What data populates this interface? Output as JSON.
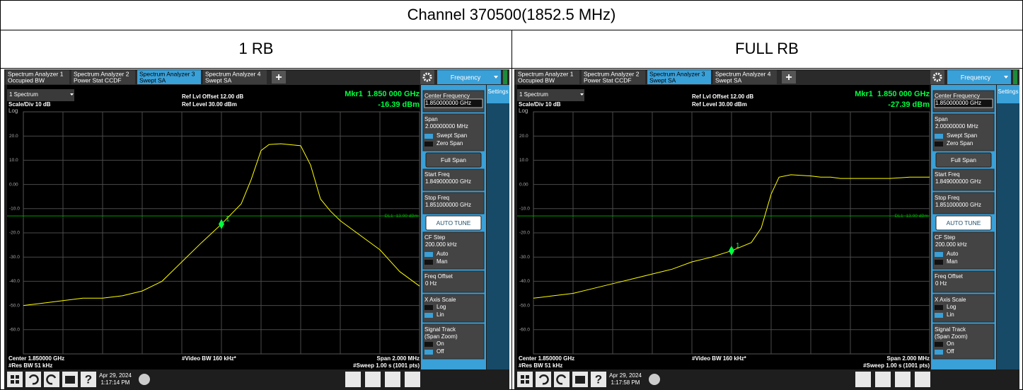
{
  "header": {
    "title": "Channel 370500(1852.5 MHz)"
  },
  "panels": [
    {
      "caption": "1 RB",
      "screen": {
        "tabs": [
          {
            "lines": [
              "Spectrum Analyzer 1",
              "Occupied BW"
            ]
          },
          {
            "lines": [
              "Spectrum Analyzer 2",
              "Power Stat CCDF"
            ]
          },
          {
            "lines": [
              "Spectrum Analyzer 3",
              "Swept SA"
            ]
          },
          {
            "lines": [
              "Spectrum Analyzer 4",
              "Swept SA"
            ]
          }
        ],
        "active_tab": 2,
        "add_tab": "+",
        "menu_title": "Frequency",
        "settings_tab": "Settings",
        "window": "1 Spectrum",
        "scale": "Scale/Div 10 dB",
        "scale_type": "Log",
        "ref_offset": "Ref Lvl Offset 12.00 dB",
        "ref_level": "Ref Level 30.00 dBm",
        "chart": {
          "type": "line",
          "color": "#ffff00",
          "xlim": [
            1849,
            1851
          ],
          "ylim": [
            -70,
            30
          ],
          "yticks": [
            {
              "value": 20,
              "label": "20.0"
            },
            {
              "value": 10,
              "label": "10.0"
            },
            {
              "value": 0,
              "label": "0.00"
            },
            {
              "value": -10,
              "label": "-10.0"
            },
            {
              "value": -20,
              "label": "-20.0"
            },
            {
              "value": -30,
              "label": "-30.0"
            },
            {
              "value": -40,
              "label": "-40.0"
            },
            {
              "value": -50,
              "label": "-50.0"
            },
            {
              "value": -60,
              "label": "-60.0"
            }
          ],
          "x": [
            1849.0,
            1849.1,
            1849.2,
            1849.3,
            1849.4,
            1849.5,
            1849.6,
            1849.7,
            1849.8,
            1849.9,
            1850.0,
            1850.1,
            1850.15,
            1850.2,
            1850.24,
            1850.3,
            1850.4,
            1850.45,
            1850.5,
            1850.55,
            1850.6,
            1850.7,
            1850.8,
            1850.9,
            1851.0
          ],
          "values": [
            -50,
            -49,
            -48,
            -47,
            -47,
            -46,
            -44,
            -40,
            -32,
            -24,
            -16.39,
            -8,
            2,
            14,
            16.5,
            16.8,
            16,
            8,
            -6,
            -11,
            -15,
            -21,
            -27,
            -36,
            -42
          ]
        },
        "marker": {
          "label": "1",
          "x": 1850,
          "value": -16.39,
          "freq_text": "Mkr1  1.850 000 GHz",
          "value_text": "-16.39 dBm",
          "color": "#00ff40"
        },
        "display_line": {
          "value": -13,
          "label": "DL1 -13.00 dBm",
          "color": "#00b000"
        },
        "footer": {
          "center": "Center 1.850000 GHz",
          "vbw": "#Video BW 160 kHz*",
          "span": "Span 2.000 MHz",
          "rbw": "#Res BW 51 kHz",
          "sweep": "#Sweep 1.00 s (1001 pts)"
        },
        "menu": [
          {
            "type": "field",
            "lines": [
              "Center Frequency"
            ],
            "value": "1.850000000 GHz",
            "active": true
          },
          {
            "type": "field",
            "lines": [
              "Span"
            ],
            "value": "2.00000000 MHz",
            "options": [
              "Swept Span",
              "Zero Span"
            ],
            "selected": 0
          },
          {
            "type": "button",
            "lines": [
              "Full Span"
            ]
          },
          {
            "type": "field",
            "lines": [
              "Start Freq"
            ],
            "value": "1.849000000 GHz"
          },
          {
            "type": "field",
            "lines": [
              "Stop Freq"
            ],
            "value": "1.851000000 GHz"
          },
          {
            "type": "primary",
            "lines": [
              "AUTO TUNE"
            ]
          },
          {
            "type": "field",
            "lines": [
              "CF Step"
            ],
            "value": "200.000 kHz",
            "options": [
              "Auto",
              "Man"
            ],
            "selected": 0
          },
          {
            "type": "field",
            "lines": [
              "Freq Offset"
            ],
            "value": "0 Hz"
          },
          {
            "type": "field",
            "lines": [
              "X Axis Scale"
            ],
            "options": [
              "Log",
              "Lin"
            ],
            "selected": 1
          },
          {
            "type": "field",
            "lines": [
              "Signal Track",
              "(Span Zoom)"
            ],
            "options": [
              "On",
              "Off"
            ],
            "selected": 1
          }
        ],
        "taskbar": {
          "help": "?",
          "date": "Apr 29, 2024",
          "time": "1:17:14 PM"
        }
      }
    },
    {
      "caption": "FULL RB",
      "screen": {
        "tabs": [
          {
            "lines": [
              "Spectrum Analyzer 1",
              "Occupied BW"
            ]
          },
          {
            "lines": [
              "Spectrum Analyzer 2",
              "Power Stat CCDF"
            ]
          },
          {
            "lines": [
              "Spectrum Analyzer 3",
              "Swept SA"
            ]
          },
          {
            "lines": [
              "Spectrum Analyzer 4",
              "Swept SA"
            ]
          }
        ],
        "active_tab": 2,
        "add_tab": "+",
        "menu_title": "Frequency",
        "settings_tab": "Settings",
        "window": "1 Spectrum",
        "scale": "Scale/Div 10 dB",
        "scale_type": "Log",
        "ref_offset": "Ref Lvl Offset 12.00 dB",
        "ref_level": "Ref Level 30.00 dBm",
        "chart": {
          "type": "line",
          "color": "#ffff00",
          "xlim": [
            1849,
            1851
          ],
          "ylim": [
            -70,
            30
          ],
          "yticks": [
            {
              "value": 20,
              "label": "20.0"
            },
            {
              "value": 10,
              "label": "10.0"
            },
            {
              "value": 0,
              "label": "0.00"
            },
            {
              "value": -10,
              "label": "-10.0"
            },
            {
              "value": -20,
              "label": "-20.0"
            },
            {
              "value": -30,
              "label": "-30.0"
            },
            {
              "value": -40,
              "label": "-40.0"
            },
            {
              "value": -50,
              "label": "-50.0"
            },
            {
              "value": -60,
              "label": "-60.0"
            }
          ],
          "x": [
            1849.0,
            1849.1,
            1849.2,
            1849.3,
            1849.4,
            1849.5,
            1849.6,
            1849.7,
            1849.8,
            1849.9,
            1850.0,
            1850.1,
            1850.15,
            1850.2,
            1850.24,
            1850.3,
            1850.4,
            1850.45,
            1850.5,
            1850.55,
            1850.6,
            1850.7,
            1850.8,
            1850.9,
            1851.0
          ],
          "values": [
            -47,
            -46,
            -45,
            -43,
            -41,
            -39,
            -37,
            -35,
            -32,
            -30,
            -27.39,
            -24,
            -18,
            -4,
            3,
            4,
            3.5,
            3,
            3,
            2.5,
            2.5,
            2.5,
            2.5,
            3,
            3
          ]
        },
        "marker": {
          "label": "1",
          "x": 1850,
          "value": -27.39,
          "freq_text": "Mkr1  1.850 000 GHz",
          "value_text": "-27.39 dBm",
          "color": "#00ff40"
        },
        "display_line": {
          "value": -13,
          "label": "DL1 -13.00 dBm",
          "color": "#00b000"
        },
        "footer": {
          "center": "Center 1.850000 GHz",
          "vbw": "#Video BW 160 kHz*",
          "span": "Span 2.000 MHz",
          "rbw": "#Res BW 51 kHz",
          "sweep": "#Sweep 1.00 s (1001 pts)"
        },
        "menu": [
          {
            "type": "field",
            "lines": [
              "Center Frequency"
            ],
            "value": "1.850000000 GHz",
            "active": true
          },
          {
            "type": "field",
            "lines": [
              "Span"
            ],
            "value": "2.00000000 MHz",
            "options": [
              "Swept Span",
              "Zero Span"
            ],
            "selected": 0
          },
          {
            "type": "button",
            "lines": [
              "Full Span"
            ]
          },
          {
            "type": "field",
            "lines": [
              "Start Freq"
            ],
            "value": "1.849000000 GHz"
          },
          {
            "type": "field",
            "lines": [
              "Stop Freq"
            ],
            "value": "1.851000000 GHz"
          },
          {
            "type": "primary",
            "lines": [
              "AUTO TUNE"
            ]
          },
          {
            "type": "field",
            "lines": [
              "CF Step"
            ],
            "value": "200.000 kHz",
            "options": [
              "Auto",
              "Man"
            ],
            "selected": 0
          },
          {
            "type": "field",
            "lines": [
              "Freq Offset"
            ],
            "value": "0 Hz"
          },
          {
            "type": "field",
            "lines": [
              "X Axis Scale"
            ],
            "options": [
              "Log",
              "Lin"
            ],
            "selected": 1
          },
          {
            "type": "field",
            "lines": [
              "Signal Track",
              "(Span Zoom)"
            ],
            "options": [
              "On",
              "Off"
            ],
            "selected": 1
          }
        ],
        "taskbar": {
          "help": "?",
          "date": "Apr 29, 2024",
          "time": "1:17:58 PM"
        }
      }
    }
  ]
}
